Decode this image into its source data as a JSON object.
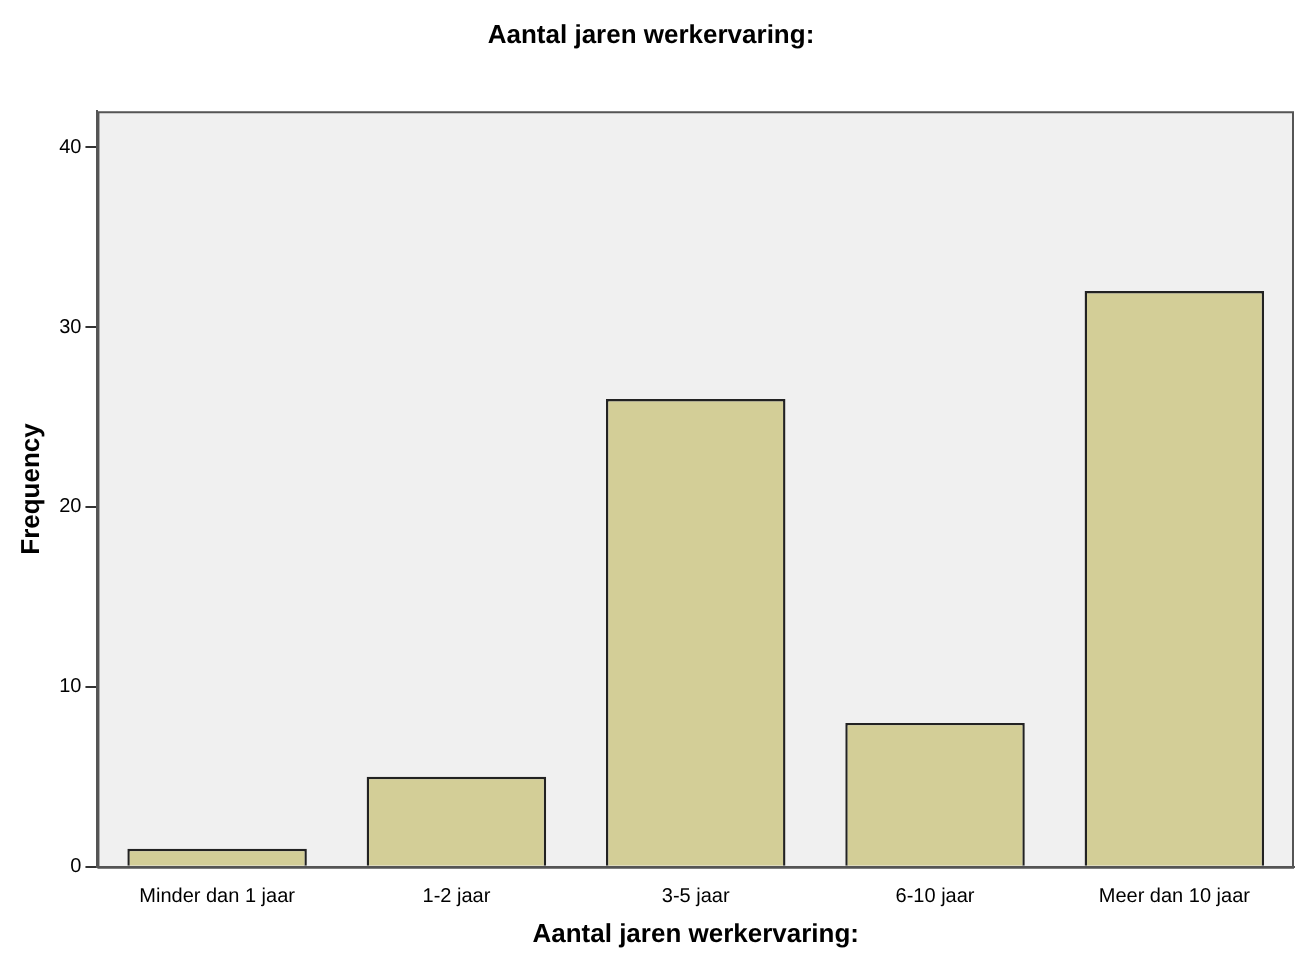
{
  "chart_data": {
    "type": "bar",
    "title": "Aantal jaren werkervaring:",
    "xlabel": "Aantal jaren werkervaring:",
    "ylabel": "Frequency",
    "categories": [
      "Minder dan 1 jaar",
      "1-2 jaar",
      "3-5 jaar",
      "6-10 jaar",
      "Meer dan 10 jaar"
    ],
    "values": [
      1,
      5,
      26,
      8,
      32
    ],
    "color": "#d3ce97",
    "ylim": [
      0,
      42
    ],
    "yticks": [
      0,
      10,
      20,
      30,
      40
    ],
    "grid": false,
    "legend": false
  }
}
